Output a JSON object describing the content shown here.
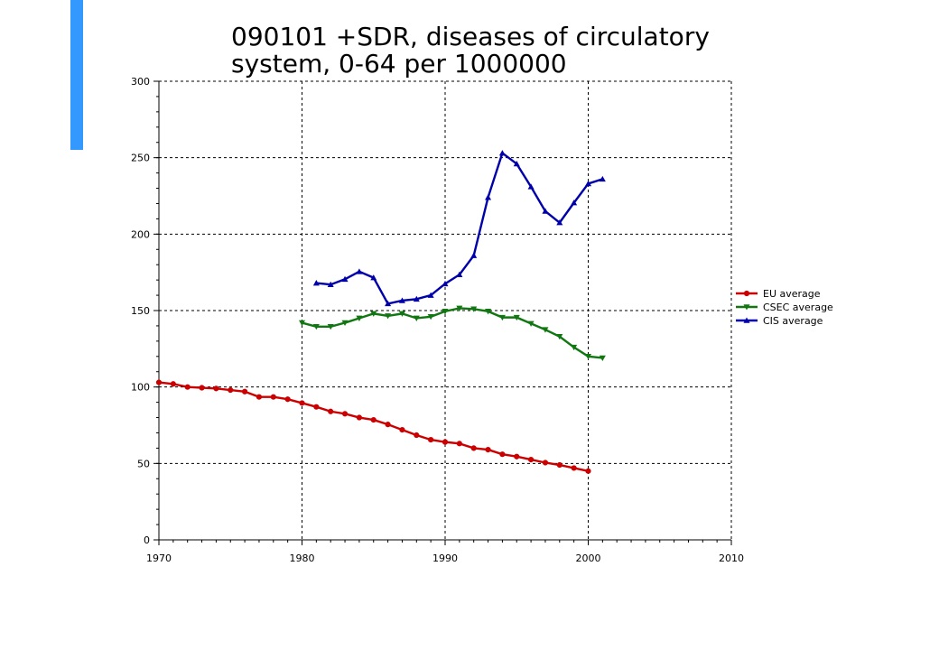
{
  "colors": {
    "accent": "#3399ff"
  },
  "chart_data": {
    "type": "line",
    "title_lines": [
      "090101 +SDR, diseases of circulatory",
      "system, 0-64 per 1000000"
    ],
    "xlabel": "",
    "ylabel": "",
    "xlim": [
      1970,
      2010
    ],
    "ylim": [
      0,
      300
    ],
    "x_ticks": [
      1970,
      1980,
      1990,
      2000,
      2010
    ],
    "y_ticks": [
      0,
      50,
      100,
      150,
      200,
      250,
      300
    ],
    "grid": true,
    "legend_position": "right",
    "series": [
      {
        "name": "EU average",
        "color": "#cc0000",
        "marker": "circle",
        "x": [
          1970,
          1971,
          1972,
          1973,
          1974,
          1975,
          1976,
          1977,
          1978,
          1979,
          1980,
          1981,
          1982,
          1983,
          1984,
          1985,
          1986,
          1987,
          1988,
          1989,
          1990,
          1991,
          1992,
          1993,
          1994,
          1995,
          1996,
          1997,
          1998,
          1999,
          2000
        ],
        "values": [
          103,
          102,
          100,
          99.5,
          99,
          98,
          97,
          93.5,
          93.5,
          92,
          89.5,
          87,
          84,
          82.5,
          80,
          78.5,
          75.5,
          72,
          68.5,
          65.5,
          64,
          63,
          60,
          59,
          56,
          54.5,
          52.5,
          50.5,
          49,
          47,
          45
        ]
      },
      {
        "name": "CSEC average",
        "color": "#117711",
        "marker": "triangle-down",
        "x": [
          1980,
          1981,
          1982,
          1983,
          1984,
          1985,
          1986,
          1987,
          1988,
          1989,
          1990,
          1991,
          1992,
          1993,
          1994,
          1995,
          1996,
          1997,
          1998,
          1999,
          2000,
          2001
        ],
        "values": [
          142,
          139.5,
          139.5,
          142,
          145,
          148,
          146.5,
          148,
          145,
          146,
          149.5,
          151.5,
          151,
          149.5,
          145.5,
          145.5,
          141.5,
          137.5,
          133,
          126,
          120,
          119
        ]
      },
      {
        "name": "CIS average",
        "color": "#0000aa",
        "marker": "triangle-up",
        "x": [
          1981,
          1982,
          1983,
          1984,
          1985,
          1986,
          1987,
          1988,
          1989,
          1990,
          1991,
          1992,
          1993,
          1994,
          1995,
          1996,
          1997,
          1998,
          1999,
          2000,
          2001
        ],
        "values": [
          168,
          167,
          170.5,
          175.5,
          171.5,
          154.5,
          156.5,
          157.5,
          160,
          167.5,
          173.5,
          186,
          224,
          253,
          246,
          231,
          215,
          207.5,
          220.5,
          233,
          236
        ]
      }
    ]
  }
}
